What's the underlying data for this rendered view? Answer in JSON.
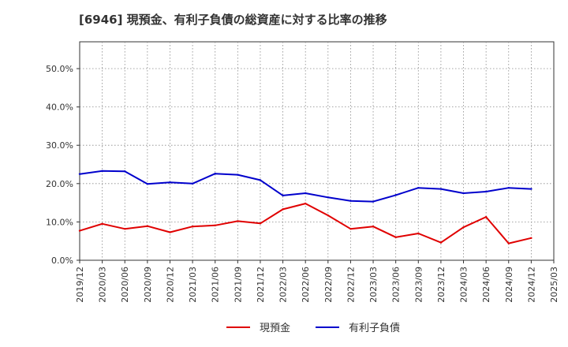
{
  "chart_data": {
    "type": "line",
    "title": "[6946]  現預金、有利子負債の総資産に対する比率の推移",
    "x": [
      "2019/12",
      "2020/03",
      "2020/06",
      "2020/09",
      "2020/12",
      "2021/03",
      "2021/06",
      "2021/09",
      "2021/12",
      "2022/03",
      "2022/06",
      "2022/09",
      "2022/12",
      "2023/03",
      "2023/06",
      "2023/09",
      "2023/12",
      "2024/03",
      "2024/06",
      "2024/09",
      "2024/12",
      "2025/03"
    ],
    "x_tick_labels": [
      "2019/12",
      "2020/03",
      "2020/06",
      "2020/09",
      "2020/12",
      "2021/03",
      "2021/06",
      "2021/09",
      "2021/12",
      "2022/03",
      "2022/06",
      "2022/09",
      "2022/12",
      "2023/03",
      "2023/06",
      "2023/09",
      "2023/12",
      "2024/03",
      "2024/06",
      "2024/09",
      "2024/12",
      "2025/03"
    ],
    "y_tick_values": [
      0,
      10,
      20,
      30,
      40,
      50
    ],
    "y_tick_labels": [
      "0.0%",
      "10.0%",
      "20.0%",
      "30.0%",
      "40.0%",
      "50.0%"
    ],
    "ylim": [
      0,
      57
    ],
    "xlabel": "",
    "ylabel": "",
    "grid": true,
    "legend_position": "bottom",
    "series": [
      {
        "name": "現預金",
        "color": "#e00000",
        "values": [
          7.7,
          9.5,
          8.2,
          8.9,
          7.3,
          8.8,
          9.1,
          10.2,
          9.6,
          13.3,
          14.8,
          11.7,
          8.2,
          8.8,
          6.0,
          7.0,
          4.6,
          8.6,
          11.3,
          4.4,
          5.8,
          null
        ]
      },
      {
        "name": "有利子負債",
        "color": "#0000cc",
        "values": [
          22.5,
          23.3,
          23.2,
          19.9,
          20.3,
          20.0,
          22.6,
          22.3,
          20.9,
          16.9,
          17.5,
          16.4,
          15.5,
          15.3,
          17.0,
          18.9,
          18.6,
          17.5,
          17.9,
          18.9,
          18.6,
          null
        ]
      }
    ]
  }
}
